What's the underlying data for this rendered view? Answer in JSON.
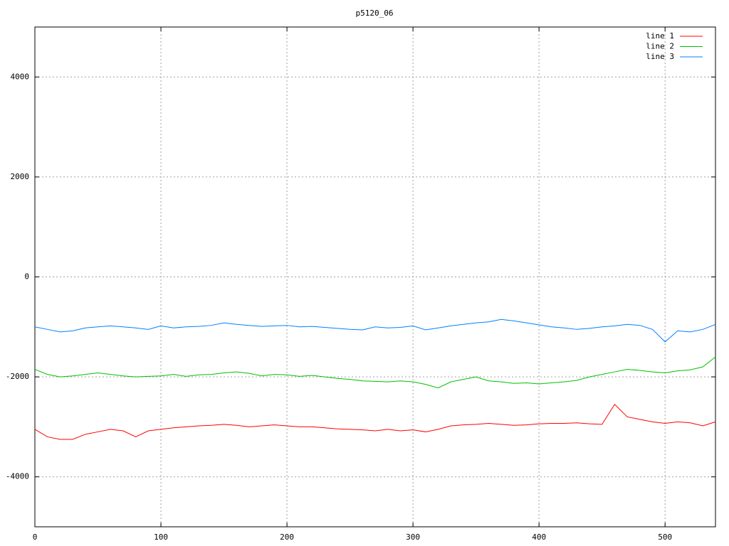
{
  "chart_data": {
    "type": "line",
    "title": "p5120_06",
    "x": [
      0,
      10,
      20,
      30,
      40,
      50,
      60,
      70,
      80,
      90,
      100,
      110,
      120,
      130,
      140,
      150,
      160,
      170,
      180,
      190,
      200,
      210,
      220,
      230,
      240,
      250,
      260,
      270,
      280,
      290,
      300,
      310,
      320,
      330,
      340,
      350,
      360,
      370,
      380,
      390,
      400,
      410,
      420,
      430,
      440,
      450,
      460,
      470,
      480,
      490,
      500,
      510,
      520,
      530,
      540
    ],
    "series": [
      {
        "name": "line 1",
        "color": "#ff0000",
        "values": [
          -3050,
          -3200,
          -3250,
          -3250,
          -3150,
          -3100,
          -3050,
          -3080,
          -3200,
          -3080,
          -3050,
          -3020,
          -3000,
          -2980,
          -2970,
          -2950,
          -2970,
          -3000,
          -2980,
          -2960,
          -2980,
          -3000,
          -3000,
          -3020,
          -3040,
          -3050,
          -3060,
          -3080,
          -3050,
          -3080,
          -3060,
          -3100,
          -3050,
          -2980,
          -2960,
          -2950,
          -2930,
          -2950,
          -2970,
          -2960,
          -2940,
          -2930,
          -2930,
          -2920,
          -2940,
          -2950,
          -2550,
          -2800,
          -2850,
          -2900,
          -2930,
          -2900,
          -2920,
          -2980,
          -2900
        ]
      },
      {
        "name": "line 2",
        "color": "#00c000",
        "values": [
          -1850,
          -1950,
          -2000,
          -1980,
          -1950,
          -1920,
          -1950,
          -1980,
          -2000,
          -1990,
          -1980,
          -1950,
          -1990,
          -1960,
          -1950,
          -1920,
          -1900,
          -1930,
          -1980,
          -1950,
          -1960,
          -1990,
          -1970,
          -2000,
          -2030,
          -2050,
          -2080,
          -2090,
          -2100,
          -2080,
          -2100,
          -2150,
          -2220,
          -2100,
          -2050,
          -2000,
          -2080,
          -2100,
          -2130,
          -2120,
          -2140,
          -2120,
          -2100,
          -2070,
          -2000,
          -1950,
          -1900,
          -1850,
          -1870,
          -1900,
          -1920,
          -1880,
          -1860,
          -1800,
          -1600
        ]
      },
      {
        "name": "line 3",
        "color": "#0080ff",
        "values": [
          -1000,
          -1050,
          -1100,
          -1080,
          -1020,
          -1000,
          -980,
          -1000,
          -1020,
          -1050,
          -980,
          -1020,
          -1000,
          -990,
          -970,
          -920,
          -950,
          -970,
          -990,
          -980,
          -970,
          -1000,
          -990,
          -1010,
          -1030,
          -1050,
          -1060,
          -1000,
          -1020,
          -1010,
          -980,
          -1060,
          -1020,
          -980,
          -950,
          -920,
          -900,
          -850,
          -880,
          -920,
          -960,
          -1000,
          -1020,
          -1050,
          -1030,
          -1000,
          -980,
          -950,
          -970,
          -1050,
          -1300,
          -1080,
          -1100,
          -1050,
          -950
        ]
      }
    ],
    "xlim": [
      0,
      540
    ],
    "ylim": [
      -5000,
      5000
    ],
    "xticks": [
      0,
      100,
      200,
      300,
      400,
      500
    ],
    "yticks": [
      -4000,
      -2000,
      0,
      2000,
      4000
    ],
    "grid": true,
    "legend": "top-right"
  }
}
